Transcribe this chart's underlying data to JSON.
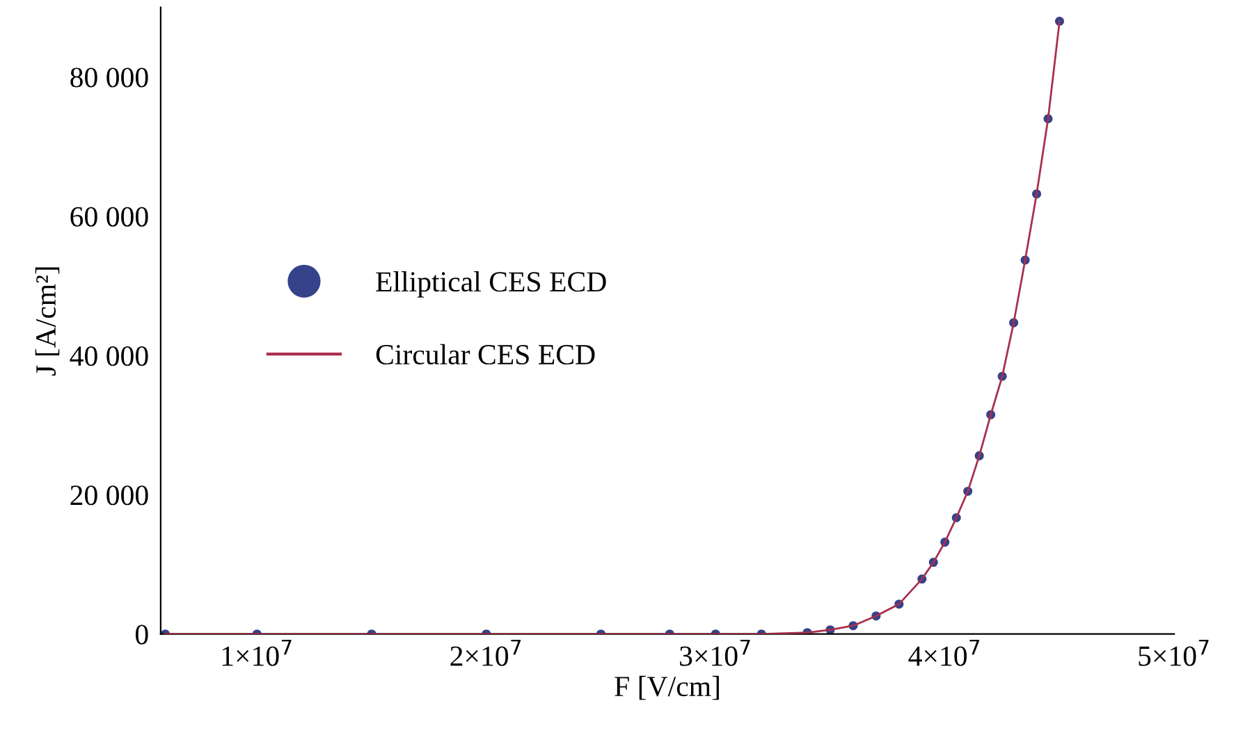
{
  "chart_data": {
    "type": "scatter",
    "xlabel": "F [V/cm]",
    "ylabel": "J [A/cm²]",
    "x": [
      6000000,
      10000000,
      15000000,
      20000000,
      25000000,
      28000000,
      30000000,
      32000000,
      34000000,
      35000000,
      36000000,
      37000000,
      38000000,
      39000000,
      39500000,
      40000000,
      40500000,
      41000000,
      41500000,
      42000000,
      42500000,
      43000000,
      43500000,
      44000000,
      44500000,
      45000000
    ],
    "series": [
      {
        "name": "Elliptical CES ECD",
        "marker": "circle",
        "color": "#36428a",
        "values": [
          0,
          0,
          0,
          0,
          0,
          0,
          0,
          0,
          200,
          600,
          1200,
          2600,
          4300,
          7900,
          10300,
          13200,
          16700,
          20500,
          25600,
          31500,
          37000,
          44700,
          53700,
          63200,
          74000,
          88000
        ]
      },
      {
        "name": "Circular CES ECD",
        "type": "line",
        "color": "#a8304c",
        "values": [
          0,
          0,
          0,
          0,
          0,
          0,
          0,
          0,
          200,
          600,
          1200,
          2600,
          4300,
          7900,
          10300,
          13200,
          16700,
          20500,
          25600,
          31500,
          37000,
          44700,
          53700,
          63200,
          74000,
          88000
        ]
      }
    ],
    "xlim": [
      5800000,
      50000000
    ],
    "xticks": [
      {
        "value": 10000000,
        "label": "1×10$^{7}$"
      },
      {
        "value": 20000000,
        "label": "2×10$^{7}$"
      },
      {
        "value": 30000000,
        "label": "3×10$^{7}$"
      },
      {
        "value": 40000000,
        "label": "4×10$^{7}$"
      },
      {
        "value": 50000000,
        "label": "5×10$^{7}$"
      }
    ],
    "ylim": [
      0,
      90000
    ],
    "yticks": [
      {
        "value": 0,
        "label": "0"
      },
      {
        "value": 20000,
        "label": "20 000"
      },
      {
        "value": 40000,
        "label": "40 000"
      },
      {
        "value": 60000,
        "label": "60 000"
      },
      {
        "value": 80000,
        "label": "80 000"
      }
    ],
    "legend": "left",
    "grid": false
  }
}
